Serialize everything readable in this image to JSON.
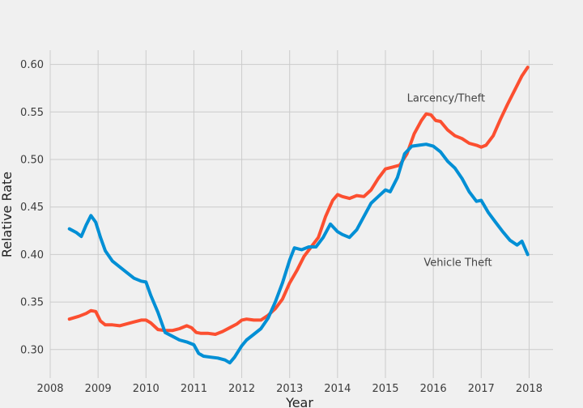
{
  "chart_data": {
    "type": "line",
    "xlabel": "Year",
    "ylabel": "Relative Rate",
    "xlim": [
      2008.0,
      2018.5
    ],
    "ylim": [
      0.27,
      0.615
    ],
    "x_ticks": [
      2008,
      2009,
      2010,
      2011,
      2012,
      2013,
      2014,
      2015,
      2016,
      2017,
      2018
    ],
    "x_tick_labels": [
      "2008",
      "2009",
      "2010",
      "2011",
      "2012",
      "2013",
      "2014",
      "2015",
      "2016",
      "2017",
      "2018"
    ],
    "y_ticks": [
      0.3,
      0.35,
      0.4,
      0.45,
      0.5,
      0.55,
      0.6
    ],
    "y_tick_labels": [
      "0.30",
      "0.35",
      "0.40",
      "0.45",
      "0.50",
      "0.55",
      "0.60"
    ],
    "grid": true,
    "series": [
      {
        "name": "Larcency/Theft",
        "color": "#fc4f30",
        "x": [
          2008.4,
          2008.6,
          2008.75,
          2008.85,
          2008.95,
          2009.05,
          2009.15,
          2009.3,
          2009.45,
          2009.6,
          2009.75,
          2009.9,
          2010.0,
          2010.1,
          2010.25,
          2010.4,
          2010.55,
          2010.7,
          2010.85,
          2010.95,
          2011.05,
          2011.15,
          2011.3,
          2011.45,
          2011.6,
          2011.75,
          2011.9,
          2012.0,
          2012.1,
          2012.25,
          2012.4,
          2012.55,
          2012.7,
          2012.85,
          2013.0,
          2013.15,
          2013.3,
          2013.45,
          2013.6,
          2013.75,
          2013.9,
          2014.0,
          2014.1,
          2014.25,
          2014.4,
          2014.55,
          2014.7,
          2014.85,
          2015.0,
          2015.15,
          2015.3,
          2015.45,
          2015.6,
          2015.75,
          2015.85,
          2015.95,
          2016.05,
          2016.15,
          2016.3,
          2016.45,
          2016.6,
          2016.75,
          2016.9,
          2017.0,
          2017.1,
          2017.25,
          2017.4,
          2017.55,
          2017.7,
          2017.85,
          2017.97
        ],
        "values": [
          0.332,
          0.335,
          0.338,
          0.341,
          0.34,
          0.33,
          0.326,
          0.326,
          0.325,
          0.327,
          0.329,
          0.331,
          0.331,
          0.328,
          0.321,
          0.32,
          0.32,
          0.322,
          0.325,
          0.323,
          0.318,
          0.317,
          0.317,
          0.316,
          0.319,
          0.323,
          0.327,
          0.331,
          0.332,
          0.331,
          0.331,
          0.336,
          0.343,
          0.353,
          0.37,
          0.383,
          0.398,
          0.408,
          0.418,
          0.44,
          0.457,
          0.463,
          0.461,
          0.459,
          0.462,
          0.461,
          0.468,
          0.48,
          0.49,
          0.492,
          0.494,
          0.506,
          0.527,
          0.541,
          0.548,
          0.547,
          0.541,
          0.54,
          0.531,
          0.525,
          0.522,
          0.517,
          0.515,
          0.513,
          0.515,
          0.525,
          0.542,
          0.558,
          0.573,
          0.588,
          0.597
        ]
      },
      {
        "name": "Vehicle Theft",
        "color": "#008fd5",
        "x": [
          2008.4,
          2008.55,
          2008.65,
          2008.75,
          2008.85,
          2008.95,
          2009.05,
          2009.15,
          2009.3,
          2009.45,
          2009.6,
          2009.75,
          2009.9,
          2010.0,
          2010.1,
          2010.25,
          2010.4,
          2010.55,
          2010.7,
          2010.85,
          2011.0,
          2011.1,
          2011.2,
          2011.35,
          2011.5,
          2011.65,
          2011.75,
          2011.85,
          2012.0,
          2012.1,
          2012.25,
          2012.4,
          2012.55,
          2012.7,
          2012.85,
          2013.0,
          2013.1,
          2013.25,
          2013.4,
          2013.55,
          2013.7,
          2013.85,
          2014.0,
          2014.1,
          2014.25,
          2014.4,
          2014.55,
          2014.7,
          2014.85,
          2015.0,
          2015.1,
          2015.25,
          2015.4,
          2015.55,
          2015.7,
          2015.85,
          2016.0,
          2016.15,
          2016.3,
          2016.45,
          2016.6,
          2016.75,
          2016.9,
          2017.0,
          2017.15,
          2017.3,
          2017.45,
          2017.6,
          2017.75,
          2017.85,
          2017.97
        ],
        "values": [
          0.427,
          0.423,
          0.419,
          0.431,
          0.441,
          0.434,
          0.418,
          0.404,
          0.393,
          0.387,
          0.381,
          0.375,
          0.372,
          0.371,
          0.357,
          0.339,
          0.318,
          0.314,
          0.31,
          0.308,
          0.305,
          0.296,
          0.293,
          0.292,
          0.291,
          0.289,
          0.286,
          0.292,
          0.304,
          0.31,
          0.316,
          0.322,
          0.333,
          0.35,
          0.37,
          0.394,
          0.407,
          0.405,
          0.408,
          0.408,
          0.418,
          0.432,
          0.424,
          0.421,
          0.418,
          0.426,
          0.44,
          0.454,
          0.461,
          0.468,
          0.466,
          0.481,
          0.506,
          0.514,
          0.515,
          0.516,
          0.514,
          0.508,
          0.498,
          0.491,
          0.48,
          0.466,
          0.456,
          0.457,
          0.444,
          0.434,
          0.424,
          0.415,
          0.41,
          0.414,
          0.4
        ]
      }
    ],
    "annotations": [
      {
        "text": "Larcency/Theft",
        "x": 2015.45,
        "y": 0.561
      },
      {
        "text": "Vehicle Theft",
        "x": 2015.8,
        "y": 0.388
      }
    ]
  }
}
